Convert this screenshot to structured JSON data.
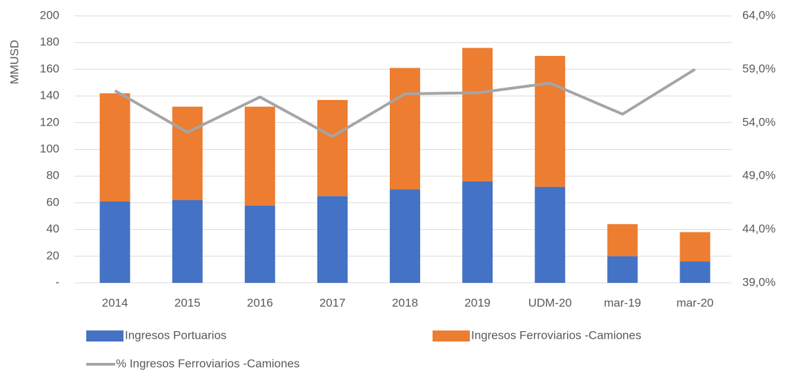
{
  "chart_data": {
    "type": "bar",
    "stacked": true,
    "y_label": "MMUSD",
    "categories": [
      "2014",
      "2015",
      "2016",
      "2017",
      "2018",
      "2019",
      "UDM-20",
      "mar-19",
      "mar-20"
    ],
    "series": [
      {
        "name": "Ingresos Portuarios",
        "color": "#4472c4",
        "values": [
          61,
          62,
          58,
          65,
          70,
          76,
          72,
          20,
          16
        ]
      },
      {
        "name": "Ingresos Ferroviarios -Camiones",
        "color": "#ed7d31",
        "values": [
          81,
          70,
          74,
          72,
          91,
          100,
          98,
          24,
          22
        ]
      },
      {
        "name": "% Ingresos Ferroviarios -Camiones",
        "color": "#a5a5a5",
        "type": "line",
        "axis": "y2",
        "values": [
          57.0,
          53.1,
          56.4,
          52.7,
          56.7,
          56.8,
          57.7,
          54.8,
          59.0
        ]
      }
    ],
    "ylim": [
      0,
      200
    ],
    "yticks": [
      {
        "value": 0,
        "label": "-"
      },
      20,
      40,
      60,
      80,
      100,
      120,
      140,
      160,
      180,
      200
    ],
    "y2lim": [
      39,
      64
    ],
    "y2ticks": [
      {
        "value": 39,
        "label": "39,0%"
      },
      {
        "value": 44,
        "label": "44,0%"
      },
      {
        "value": 49,
        "label": "49,0%"
      },
      {
        "value": 54,
        "label": "54,0%"
      },
      {
        "value": 59,
        "label": "59,0%"
      },
      {
        "value": 64,
        "label": "64,0%"
      }
    ],
    "grid": true,
    "legend": "bottom"
  }
}
